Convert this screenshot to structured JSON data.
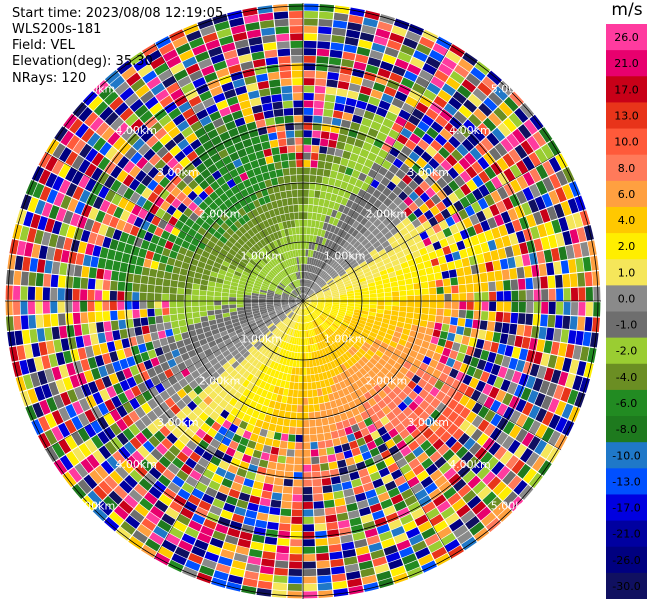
{
  "header": {
    "start_time": "Start time: 2023/08/08 12:19:05",
    "instrument": "WLS200s-181",
    "field": "Field: VEL",
    "elevation": "Elevation(deg): 35.30",
    "nrays": "NRays: 120"
  },
  "colorbar": {
    "unit": "m/s",
    "ticks": [
      "26.0",
      "21.0",
      "17.0",
      "13.0",
      "10.0",
      "8.0",
      "6.0",
      "4.0",
      "2.0",
      "1.0",
      "0.0",
      "-1.0",
      "-2.0",
      "-4.0",
      "-6.0",
      "-8.0",
      "-10.0",
      "-13.0",
      "-17.0",
      "-21.0",
      "-26.0",
      "-30.0"
    ],
    "colors": [
      "#ff3b9f",
      "#e8006e",
      "#c80018",
      "#e8341a",
      "#ff5a3a",
      "#ff7a5a",
      "#ffa040",
      "#ffc800",
      "#ffee00",
      "#f5e65a",
      "#8a8a8a",
      "#6e6e6e",
      "#9acd32",
      "#6b8e23",
      "#228b22",
      "#1e7a1e",
      "#1f78c8",
      "#0050ff",
      "#0000e0",
      "#0000a0",
      "#000080",
      "#101060"
    ]
  },
  "chart_data": {
    "type": "heatmap",
    "projection": "polar PPI",
    "field": "VEL",
    "units": "m/s",
    "n_rays": 120,
    "vmin": -30.0,
    "vmax": 26.0,
    "range_ring_labels": [
      "1.00km",
      "2.00km",
      "3.00km",
      "4.00km",
      "5.00km"
    ],
    "range_rings_km": [
      1,
      2,
      3,
      4,
      5
    ],
    "description_values": {
      "inner_region_north_west": "-8 to -13 m/s (blue)",
      "inner_region_south_east": "6 to 13 m/s (orange/red)",
      "transition": "0 to 2 m/s (gray/yellow)",
      "outer_region": "noisy, all values"
    }
  }
}
